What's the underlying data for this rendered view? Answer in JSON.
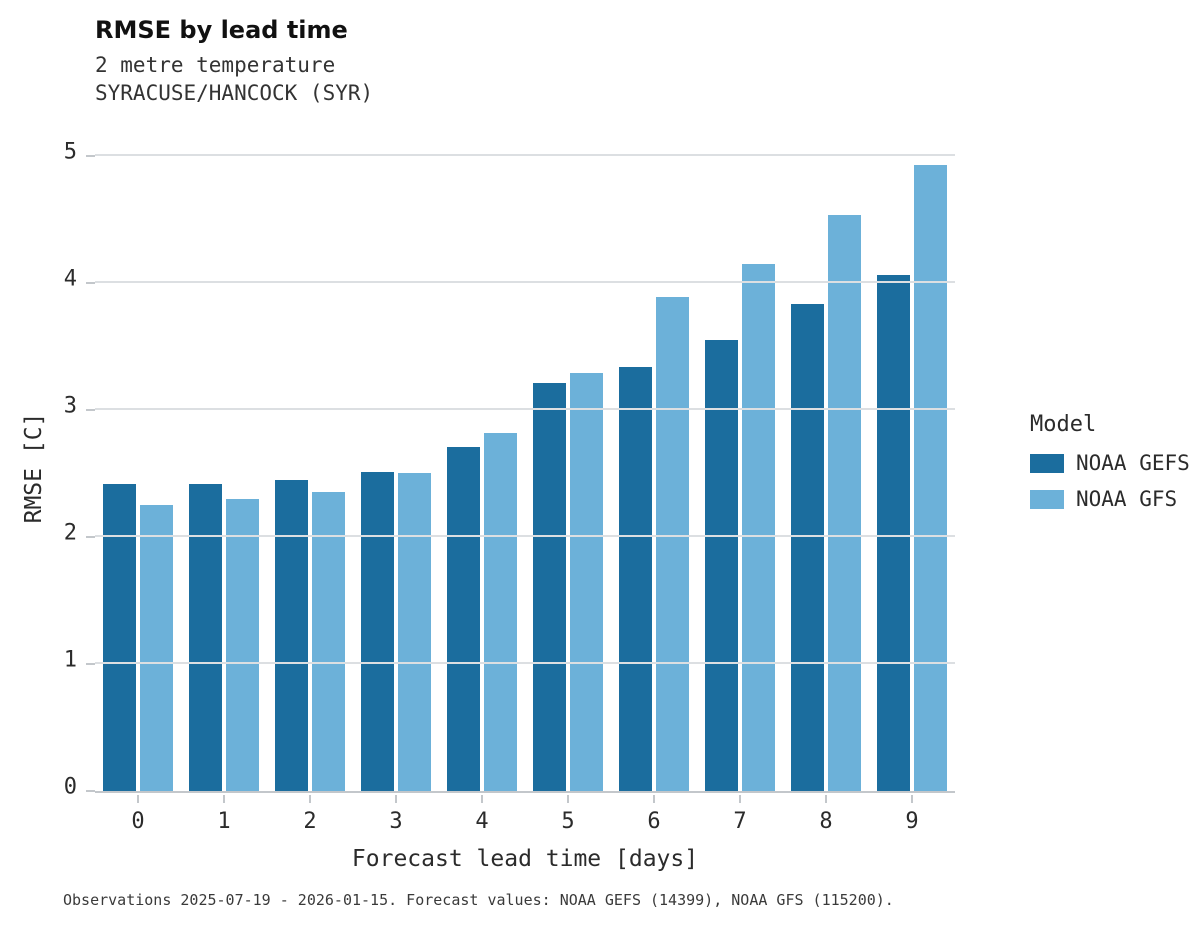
{
  "title": "RMSE by lead time",
  "subtitle_line1": "2 metre temperature",
  "subtitle_line2": "SYRACUSE/HANCOCK (SYR)",
  "caption": "Observations 2025-07-19 - 2026-01-15. Forecast values: NOAA GEFS (14399), NOAA GFS (115200).",
  "legend": {
    "title": "Model",
    "items": [
      {
        "label": "NOAA GEFS",
        "color": "#1b6d9e"
      },
      {
        "label": "NOAA GFS",
        "color": "#6cb1d9"
      }
    ]
  },
  "chart_data": {
    "type": "bar",
    "title": "RMSE by lead time",
    "subtitle": [
      "2 metre temperature",
      "SYRACUSE/HANCOCK (SYR)"
    ],
    "xlabel": "Forecast lead time [days]",
    "ylabel": "RMSE [C]",
    "categories": [
      "0",
      "1",
      "2",
      "3",
      "4",
      "5",
      "6",
      "7",
      "8",
      "9"
    ],
    "series": [
      {
        "name": "NOAA GEFS",
        "color": "#1b6d9e",
        "values": [
          2.42,
          2.42,
          2.45,
          2.51,
          2.71,
          3.21,
          3.34,
          3.55,
          3.83,
          4.06
        ]
      },
      {
        "name": "NOAA GFS",
        "color": "#6cb1d9",
        "values": [
          2.25,
          2.3,
          2.35,
          2.5,
          2.82,
          3.29,
          3.89,
          4.15,
          4.53,
          4.93
        ]
      }
    ],
    "ylim": [
      0,
      5
    ],
    "yticks": [
      0,
      1,
      2,
      3,
      4,
      5
    ],
    "grid": true,
    "legend_position": "right",
    "gridline_color": "#dcdfe2",
    "axis_color": "#c3c7cb"
  }
}
